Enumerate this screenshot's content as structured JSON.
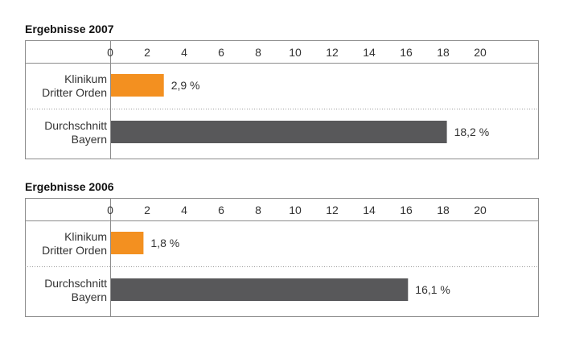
{
  "chart_data": [
    {
      "type": "bar",
      "orientation": "horizontal",
      "title": "Ergebnisse 2007",
      "xlim": [
        0,
        23
      ],
      "ticks": [
        "0",
        "2",
        "4",
        "6",
        "8",
        "10",
        "12",
        "14",
        "16",
        "18",
        "20"
      ],
      "categories": [
        [
          "Klinikum",
          "Dritter Orden"
        ],
        [
          "Durchschnitt",
          "Bayern"
        ]
      ],
      "values": [
        2.9,
        18.2
      ],
      "value_labels": [
        "2,9 %",
        "18,2 %"
      ],
      "colors": [
        "#f39020",
        "#58585a"
      ]
    },
    {
      "type": "bar",
      "orientation": "horizontal",
      "title": "Ergebnisse 2006",
      "xlim": [
        0,
        23
      ],
      "ticks": [
        "0",
        "2",
        "4",
        "6",
        "8",
        "10",
        "12",
        "14",
        "16",
        "18",
        "20"
      ],
      "categories": [
        [
          "Klinikum",
          "Dritter Orden"
        ],
        [
          "Durchschnitt",
          "Bayern"
        ]
      ],
      "values": [
        1.8,
        16.1
      ],
      "value_labels": [
        "1,8 %",
        "16,1 %"
      ],
      "colors": [
        "#f39020",
        "#58585a"
      ]
    }
  ]
}
